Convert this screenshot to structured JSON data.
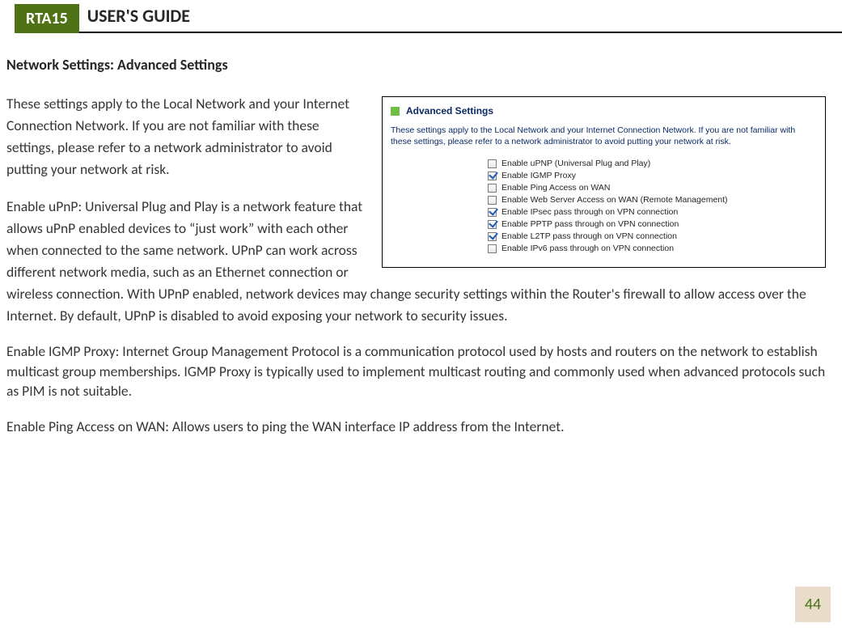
{
  "header": {
    "badge": "RTA15",
    "title": "USER'S GUIDE"
  },
  "section_heading": "Network Settings: Advanced Settings",
  "paragraphs": {
    "p1": "These settings apply to the Local Network and your Internet Connection Network.  If you are not familiar with these settings, please refer to a network administrator to avoid putting your network at risk.",
    "p2": "Enable uPnP: Universal Plug and Play is a network feature that allows uPnP enabled devices to “just work” with each other when connected to the same network.  UPnP can work across different network media, such as an Ethernet connection or wireless connection.  With UPnP enabled, network devices may change security settings within the Router's firewall to allow access over the Internet.  By default, UPnP is disabled to avoid exposing your network to security issues.",
    "p3": "Enable IGMP Proxy: Internet Group Management Protocol is a communication protocol used by hosts and routers on the network to establish multicast group memberships.  IGMP Proxy is typically used to implement multicast routing and commonly used when advanced protocols such as PIM is not suitable.",
    "p4": "Enable Ping Access on WAN: Allows users to ping the WAN interface IP address from the Internet."
  },
  "inset": {
    "title": "Advanced Settings",
    "desc": "These settings apply to the Local Network and your Internet Connection Network.  If you are not familiar with these settings, please refer to a network administrator to avoid putting your network at risk.",
    "options": [
      {
        "label": "Enable uPNP (Universal Plug and Play)",
        "checked": false
      },
      {
        "label": "Enable IGMP Proxy",
        "checked": true
      },
      {
        "label": "Enable Ping Access on WAN",
        "checked": false
      },
      {
        "label": "Enable Web Server Access on WAN (Remote Management)",
        "checked": false
      },
      {
        "label": "Enable IPsec pass through on VPN connection",
        "checked": true
      },
      {
        "label": "Enable PPTP pass through on VPN connection",
        "checked": true
      },
      {
        "label": "Enable L2TP pass through on VPN connection",
        "checked": true
      },
      {
        "label": "Enable IPv6 pass through on VPN connection",
        "checked": false
      }
    ],
    "accent_color": "#6fbf44",
    "title_color": "#0b2a63"
  },
  "page_number": "44",
  "colors": {
    "brand_green": "#4e7215",
    "page_badge_bg": "#e9ddc9"
  }
}
